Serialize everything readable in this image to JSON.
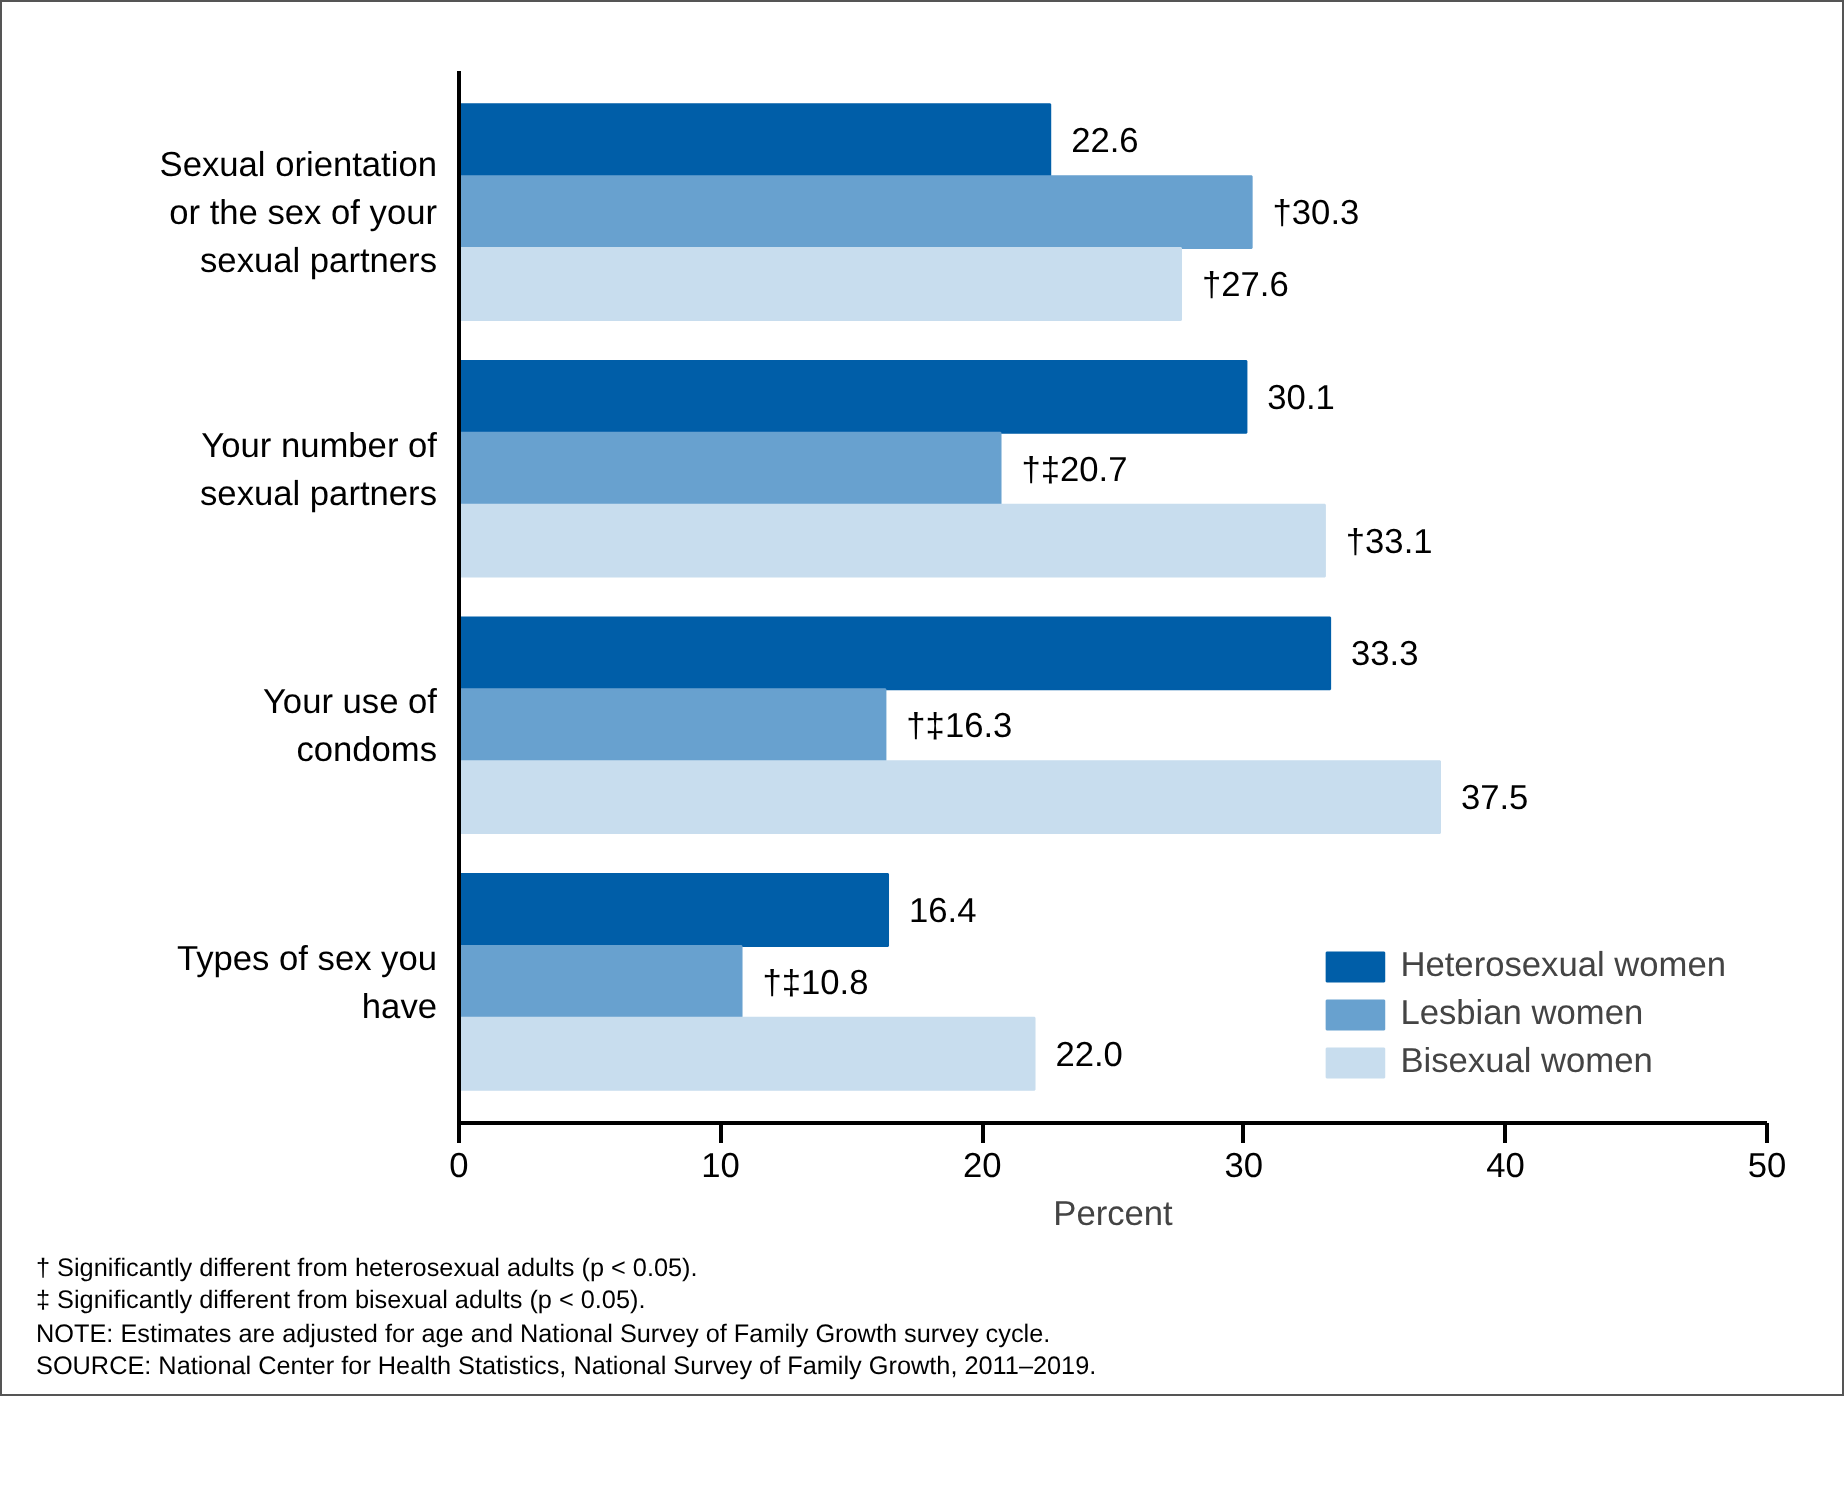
{
  "chart_data": {
    "type": "bar",
    "orientation": "horizontal",
    "xlabel": "Percent",
    "categories": [
      "Sexual orientation or the sex of your sexual partners",
      "Your number of sexual partners",
      "Your use of condoms",
      "Types of sex you have"
    ],
    "series": [
      {
        "name": "Heterosexual women",
        "color": "#005ea8",
        "values": [
          22.6,
          30.1,
          33.3,
          16.4
        ],
        "value_labels": [
          "22.6",
          "30.1",
          "33.3",
          "16.4"
        ]
      },
      {
        "name": "Lesbian women",
        "color": "#68a1cf",
        "values": [
          30.3,
          20.7,
          16.3,
          10.8
        ],
        "value_labels": [
          "†30.3",
          "†‡20.7",
          "†‡16.3",
          "†‡10.8"
        ]
      },
      {
        "name": "Bisexual women",
        "color": "#c8ddee",
        "values": [
          27.6,
          33.1,
          37.5,
          22.0
        ],
        "value_labels": [
          "†27.6",
          "†33.1",
          "37.5",
          "22.0"
        ]
      }
    ],
    "xlim": [
      0,
      50
    ],
    "xticks": [
      0,
      10,
      20,
      30,
      40,
      50
    ],
    "grid": false,
    "legend": "bottom right",
    "annotations": [
      "† Significantly different from heterosexual adults (p < 0.05).",
      "‡ Significantly different from bisexual adults (p < 0.05).",
      "NOTE: Estimates are adjusted for age and National Survey of Family Growth survey cycle.",
      "SOURCE: National Center for Health Statistics, National Survey of Family Growth, 2011–2019."
    ]
  }
}
